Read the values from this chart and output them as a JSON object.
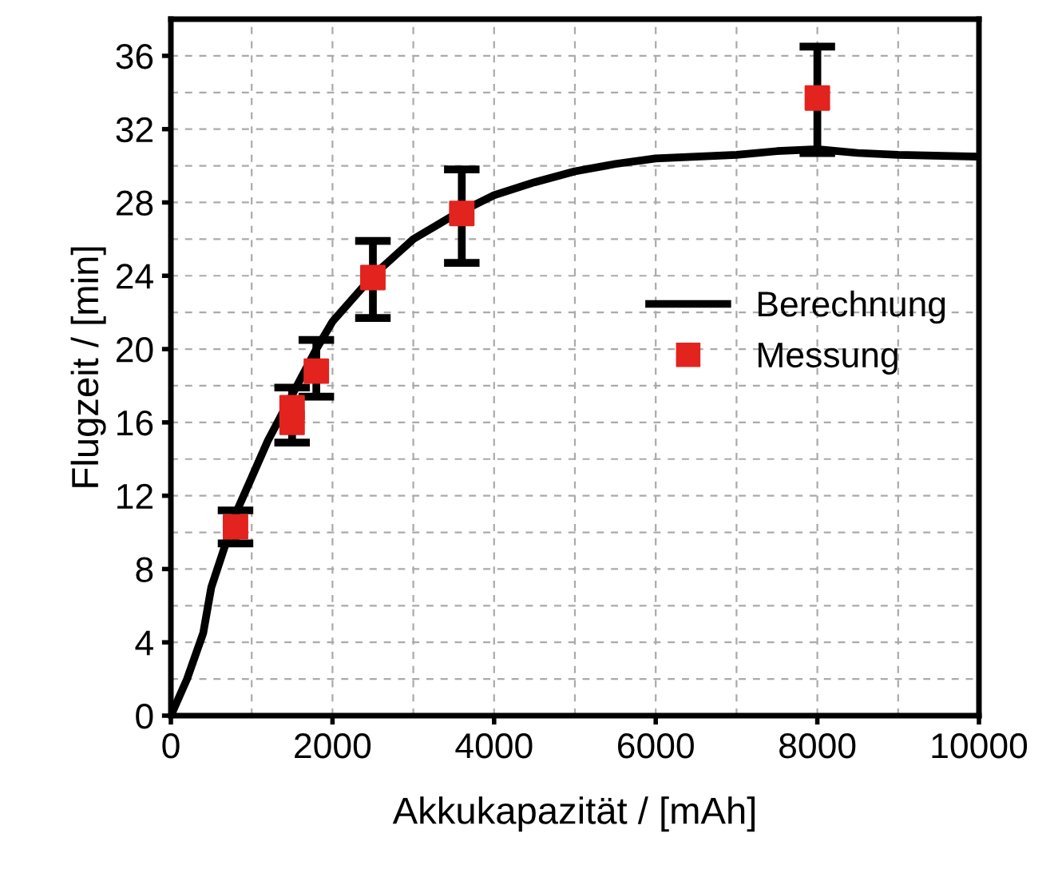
{
  "chart_data": {
    "type": "line",
    "xlabel": "Akkukapazität / [mAh]",
    "ylabel": "Flugzeit / [min]",
    "xlim": [
      0,
      10000
    ],
    "xticks": [
      0,
      2000,
      4000,
      6000,
      8000,
      10000
    ],
    "ylim": [
      0,
      38
    ],
    "yticks": [
      0,
      4,
      8,
      12,
      16,
      20,
      24,
      28,
      32,
      36
    ],
    "grid": true,
    "legend": "center right",
    "series": [
      {
        "name": "Berechnung",
        "color": "#000000",
        "marker": "none",
        "line_style": "solid",
        "x": [
          0,
          200,
          400,
          500,
          800,
          1000,
          1200,
          1500,
          1800,
          2000,
          2500,
          3000,
          3500,
          4000,
          4500,
          5000,
          5500,
          6000,
          7000,
          7500,
          8000,
          8500,
          9000,
          10000
        ],
        "values": [
          0,
          2,
          4.5,
          7,
          11,
          13,
          15,
          17.5,
          20,
          21.5,
          24,
          26,
          27.3,
          28.4,
          29.1,
          29.7,
          30.1,
          30.4,
          30.6,
          30.8,
          30.9,
          30.7,
          30.6,
          30.5
        ]
      },
      {
        "name": "Messung",
        "type": "scatter",
        "color": "#e3231e",
        "marker": "square",
        "x": [
          800,
          1500,
          1500,
          1800,
          2500,
          3600,
          8000
        ],
        "values": [
          10.3,
          16.0,
          16.8,
          18.8,
          23.9,
          27.4,
          33.7
        ],
        "errors": [
          [
            9.4,
            11.2
          ],
          [
            14.9,
            17.9
          ],
          null,
          [
            17.4,
            20.5
          ],
          [
            21.7,
            25.9
          ],
          [
            24.7,
            29.8
          ],
          [
            30.7,
            36.5
          ]
        ]
      }
    ]
  }
}
